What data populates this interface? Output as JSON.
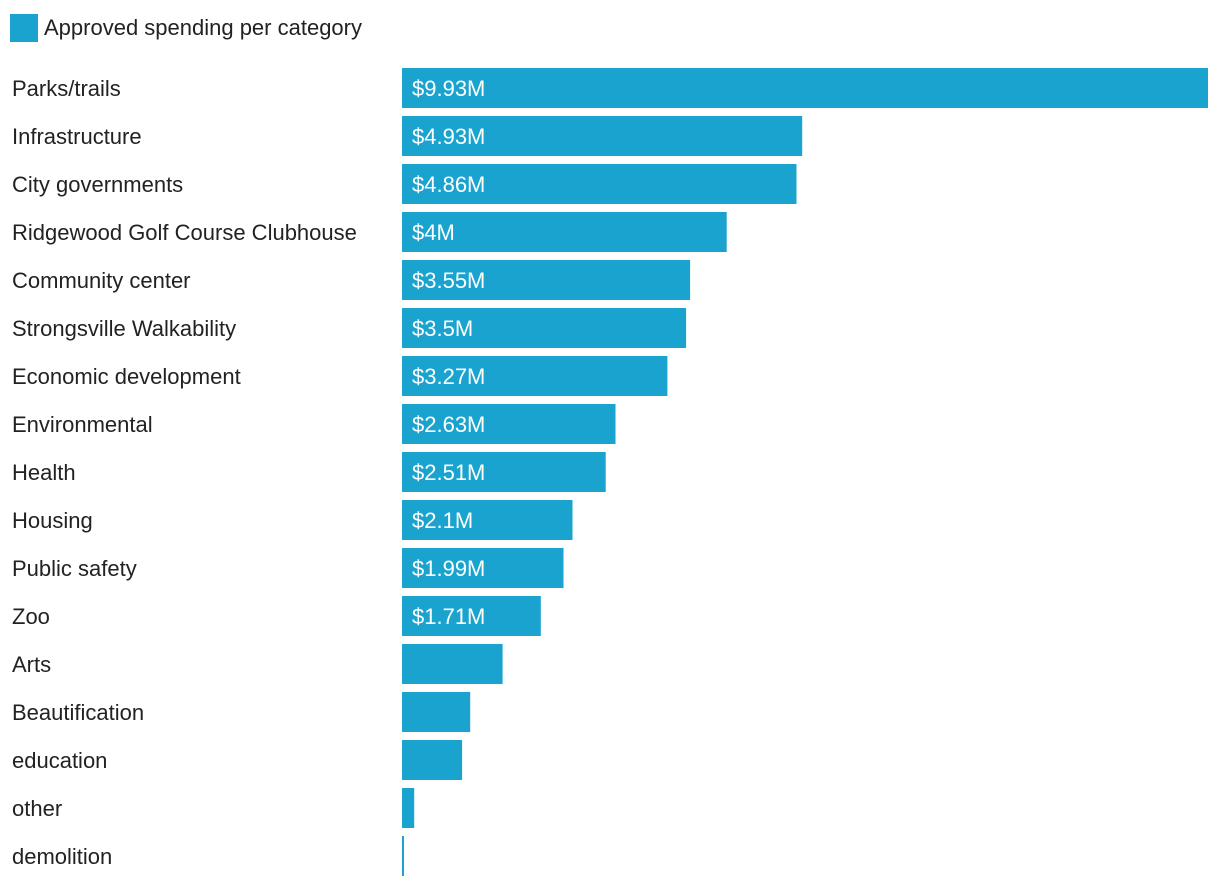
{
  "colors": {
    "bar": "#1aa3cf",
    "bar_label": "#ffffff",
    "text": "#222222"
  },
  "chart_data": {
    "type": "bar",
    "orientation": "horizontal",
    "legend": {
      "position": "top-left",
      "entries": [
        "Approved spending per category"
      ]
    },
    "series": [
      {
        "name": "Approved spending per category",
        "values": [
          9.93,
          4.93,
          4.86,
          4.0,
          3.55,
          3.5,
          3.27,
          2.63,
          2.51,
          2.1,
          1.99,
          1.71,
          1.24,
          0.84,
          0.74,
          0.15,
          0.02
        ]
      }
    ],
    "categories": [
      "Parks/trails",
      "Infrastructure",
      "City governments",
      "Ridgewood Golf Course Clubhouse",
      "Community center",
      "Strongsville Walkability",
      "Economic development",
      "Environmental",
      "Health",
      "Housing",
      "Public safety",
      "Zoo",
      "Arts",
      "Beautification",
      "education",
      "other",
      "demolition"
    ],
    "data_labels": [
      "$9.93M",
      "$4.93M",
      "$4.86M",
      "$4M",
      "$3.55M",
      "$3.5M",
      "$3.27M",
      "$2.63M",
      "$2.51M",
      "$2.1M",
      "$1.99M",
      "$1.71M",
      "",
      "",
      "",
      "",
      ""
    ],
    "unit": "million USD",
    "xlim": [
      0,
      9.93
    ],
    "grid": false,
    "title": "",
    "xlabel": "",
    "ylabel": ""
  }
}
